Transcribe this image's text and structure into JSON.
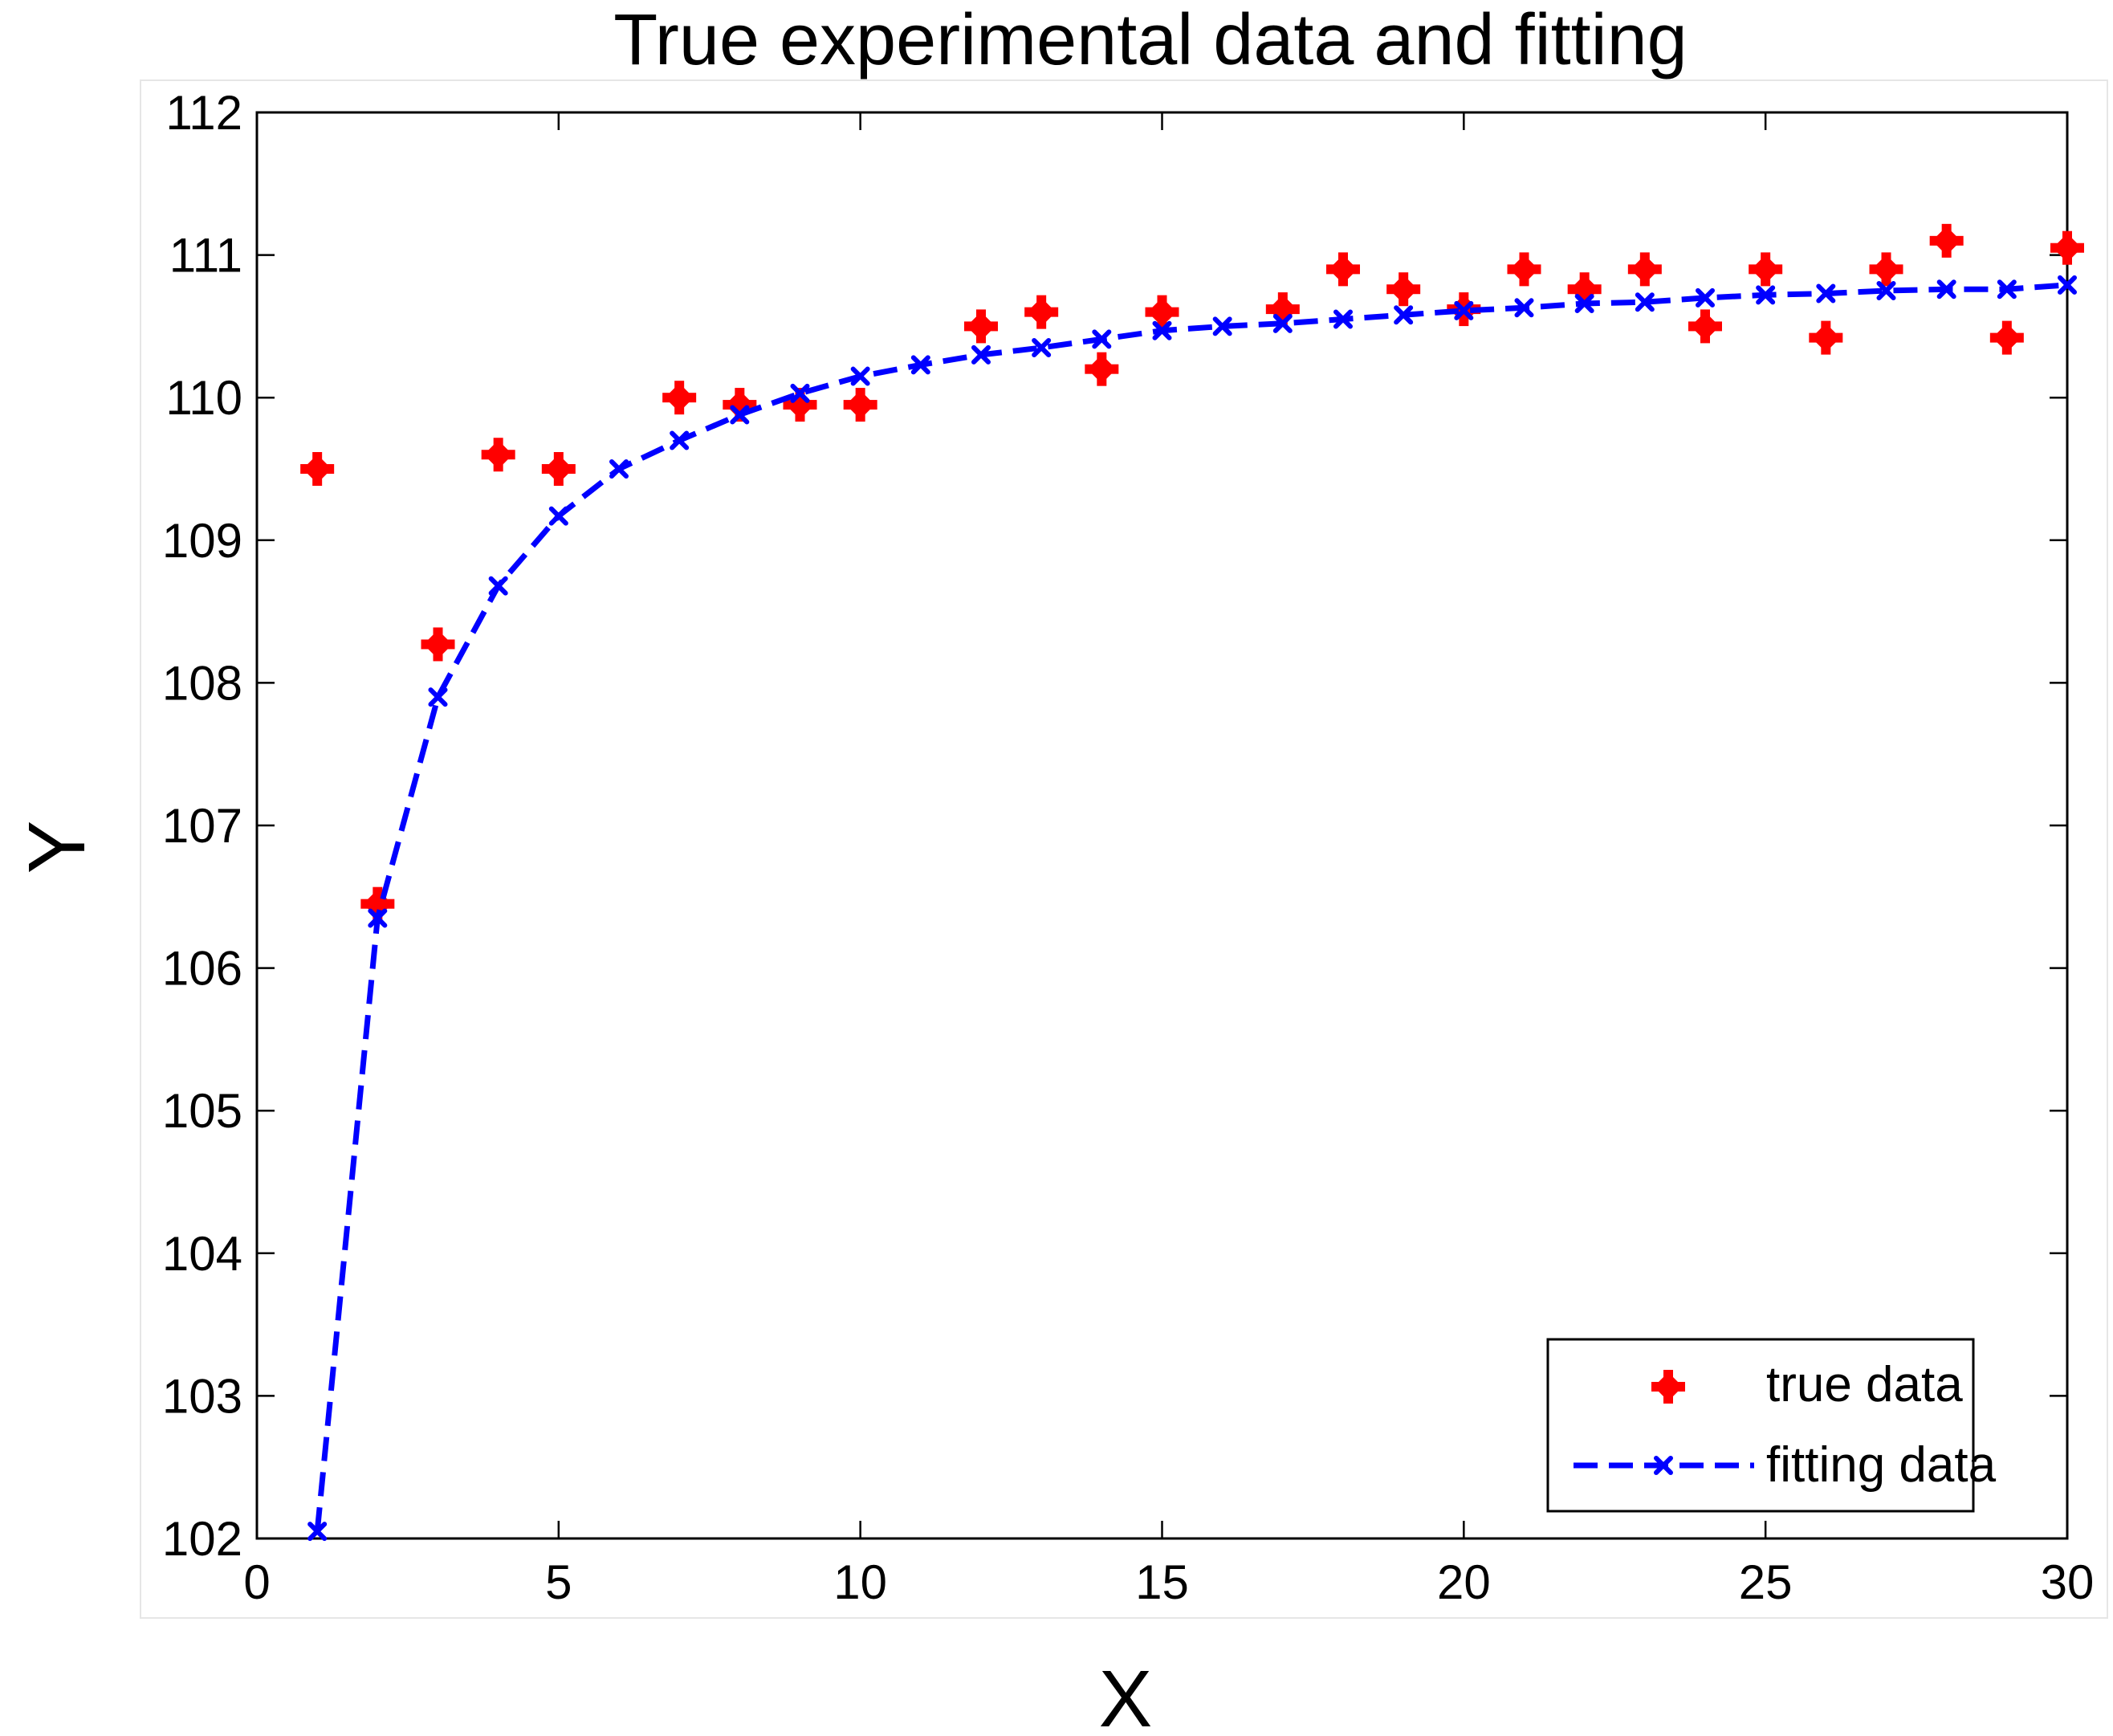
{
  "chart_data": {
    "type": "line",
    "title": "True experimental data and fitting",
    "xlabel": "X",
    "ylabel": "Y",
    "xlim": [
      0,
      30
    ],
    "ylim": [
      102,
      112
    ],
    "xticks": [
      0,
      5,
      10,
      15,
      20,
      25,
      30
    ],
    "yticks": [
      102,
      103,
      104,
      105,
      106,
      107,
      108,
      109,
      110,
      111,
      112
    ],
    "grid": false,
    "legend_position": "bottom-right",
    "series": [
      {
        "name": "true data",
        "style": "markers",
        "marker": "filled-diamond-plus",
        "color": "#ff0000",
        "x": [
          1,
          2,
          3,
          4,
          5,
          7,
          8,
          9,
          10,
          12,
          13,
          14,
          15,
          17,
          18,
          19,
          20,
          21,
          22,
          23,
          24,
          25,
          26,
          27,
          28,
          29,
          30
        ],
        "values": [
          109.5,
          106.45,
          108.27,
          109.6,
          109.5,
          110.0,
          109.95,
          109.95,
          109.95,
          110.5,
          110.6,
          110.2,
          110.6,
          110.62,
          110.9,
          110.76,
          110.62,
          110.9,
          110.76,
          110.9,
          110.5,
          110.9,
          110.42,
          110.9,
          111.1,
          110.42,
          111.05
        ]
      },
      {
        "name": "fitting data",
        "style": "dashed-line-markers",
        "marker": "x",
        "color": "#0000ff",
        "x": [
          1,
          2,
          3,
          4,
          5,
          6,
          7,
          8,
          9,
          10,
          11,
          12,
          13,
          14,
          15,
          16,
          17,
          18,
          19,
          20,
          21,
          22,
          23,
          24,
          25,
          26,
          27,
          28,
          29,
          30
        ],
        "values": [
          102.05,
          106.35,
          107.9,
          108.68,
          109.17,
          109.5,
          109.7,
          109.88,
          110.03,
          110.15,
          110.23,
          110.3,
          110.35,
          110.41,
          110.47,
          110.5,
          110.52,
          110.55,
          110.58,
          110.61,
          110.63,
          110.66,
          110.67,
          110.7,
          110.72,
          110.73,
          110.75,
          110.76,
          110.76,
          110.79
        ]
      }
    ]
  }
}
